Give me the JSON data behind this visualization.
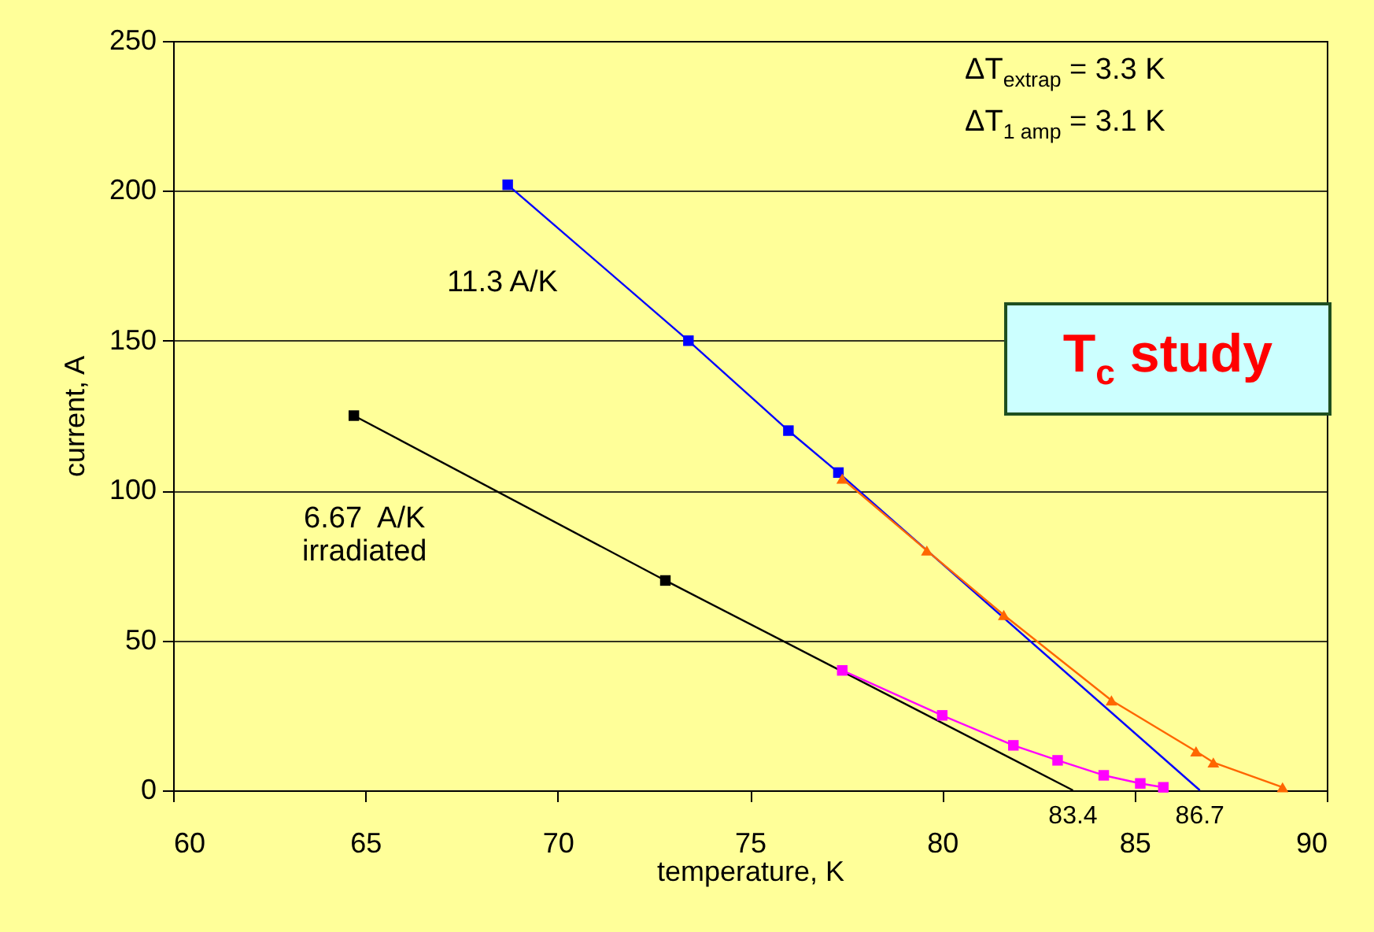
{
  "chart_data": {
    "type": "line",
    "title": "T$_{c}$ study",
    "xlabel": "temperature,  K",
    "ylabel": "current,  A",
    "xlim": [
      60,
      90
    ],
    "xticks": [
      60,
      65,
      70,
      75,
      80,
      85,
      90
    ],
    "ylim": [
      0,
      250
    ],
    "yticks": [
      0,
      50,
      100,
      150,
      200,
      250
    ],
    "grid": "y",
    "legend": false,
    "series": [
      {
        "color": "#0000ff",
        "marker": "square",
        "x": [
          68.7,
          73.4,
          76.0,
          77.3
        ],
        "values": [
          202,
          150,
          120,
          106
        ]
      },
      {
        "color": "#0000ff",
        "marker": "none",
        "x": [
          77.3,
          86.7
        ],
        "values": [
          106,
          0
        ]
      },
      {
        "color": "#000000",
        "marker": "square",
        "x": [
          64.7,
          72.8
        ],
        "values": [
          125,
          70
        ]
      },
      {
        "color": "#000000",
        "marker": "none",
        "x": [
          72.8,
          83.4
        ],
        "values": [
          70,
          0
        ]
      },
      {
        "color": "#ff00ff",
        "marker": "square",
        "x": [
          77.4,
          80.0,
          81.85,
          83.0,
          84.2,
          85.15,
          85.75
        ],
        "values": [
          40,
          25,
          15,
          10,
          5,
          2.3,
          1
        ]
      },
      {
        "color": "#ff6600",
        "marker": "triangle",
        "x": [
          77.4,
          79.6,
          81.6,
          84.4,
          86.6,
          87.05,
          88.85
        ],
        "values": [
          104,
          80,
          58.5,
          30,
          13,
          9.3,
          1
        ]
      }
    ],
    "annotations": [
      "ΔT$_{extrap}$ = 3.3 K",
      "ΔT$_{1 amp}$ = 3.1 K",
      "11.3 A/K",
      "6.67  A/K\nirradiated",
      {
        "text": "83.4",
        "x": 83.4,
        "y": 0
      },
      {
        "text": "86.7",
        "x": 86.7,
        "y": 0
      }
    ]
  }
}
